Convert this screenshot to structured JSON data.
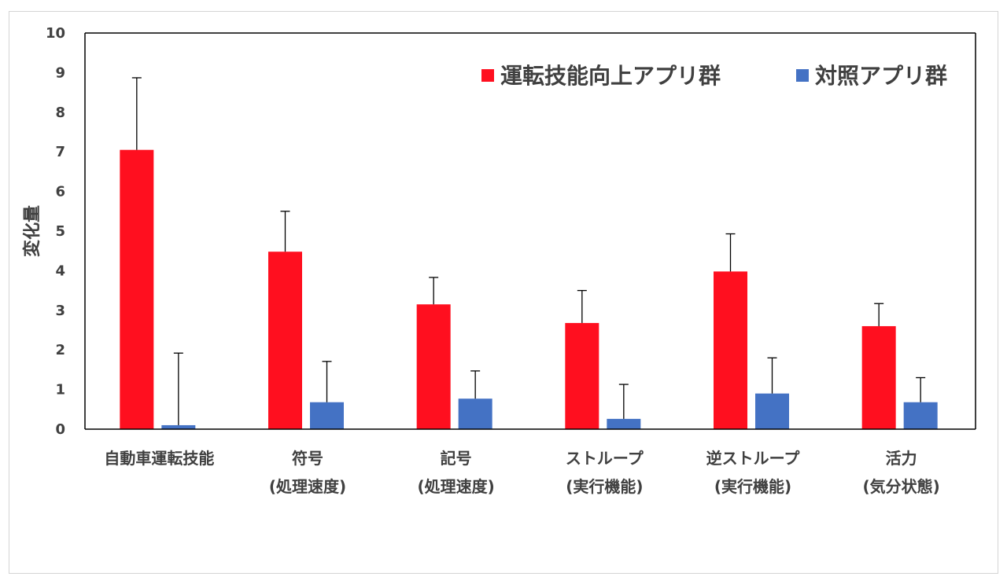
{
  "chart_data": {
    "type": "bar",
    "title": "",
    "xlabel": "",
    "ylabel": "変化量",
    "ylim": [
      0,
      10
    ],
    "yticks": [
      0,
      1,
      2,
      3,
      4,
      5,
      6,
      7,
      8,
      9,
      10
    ],
    "grid": false,
    "legend_position": "top-right",
    "categories": [
      [
        "自動車運転技能"
      ],
      [
        "符号",
        "(処理速度)"
      ],
      [
        "記号",
        "(処理速度)"
      ],
      [
        "ストループ",
        "(実行機能)"
      ],
      [
        "逆ストループ",
        "(実行機能)"
      ],
      [
        "活力",
        "(気分状態)"
      ]
    ],
    "series": [
      {
        "name": "運転技能向上アプリ群",
        "color": "#ff0f1f",
        "values": [
          7.05,
          4.48,
          3.15,
          2.68,
          3.98,
          2.6
        ],
        "error": [
          1.82,
          1.02,
          0.68,
          0.82,
          0.95,
          0.57
        ]
      },
      {
        "name": "対照アプリ群",
        "color": "#4472c4",
        "values": [
          0.1,
          0.68,
          0.77,
          0.26,
          0.9,
          0.68
        ],
        "error": [
          1.82,
          1.03,
          0.7,
          0.87,
          0.9,
          0.62
        ]
      }
    ]
  }
}
